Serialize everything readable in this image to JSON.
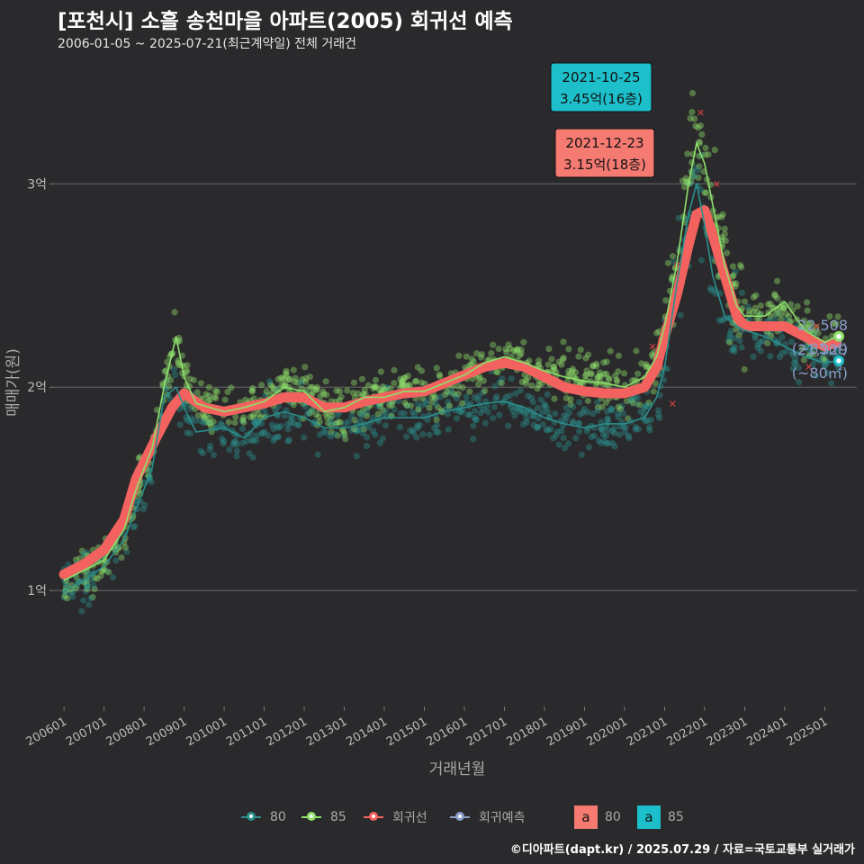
{
  "header": {
    "title": "[포천시] 소흘 송천마을 아파트(2005) 회귀선 예측",
    "subtitle": "2006-01-05 ~ 2025-07-21(최근계약일) 전체 거래건"
  },
  "caption": "©디아파트(dapt.kr) / 2025.07.29 / 자료=국토교통부 실거래가",
  "legend": {
    "items": [
      {
        "label": "80",
        "color": "#2a8f8c"
      },
      {
        "label": "85",
        "color": "#8ee06b"
      },
      {
        "label": "회귀선",
        "color": "#f4625f"
      },
      {
        "label": "회귀예측",
        "color": "#8a9ec9"
      }
    ],
    "boxes": [
      {
        "glyph": "a",
        "label": "80",
        "color": "#f47a72"
      },
      {
        "glyph": "a",
        "label": "85",
        "color": "#1dbfca"
      }
    ]
  },
  "chart_data": {
    "type": "scatter",
    "title": "[포천시] 소흘 송천마을 아파트(2005) 회귀선 예측",
    "xlabel": "거래년월",
    "ylabel": "매매가(원)",
    "xlim": [
      2005.75,
      2025.8
    ],
    "ylim": [
      0.43,
      3.55
    ],
    "y_ticks": [
      {
        "value": 1,
        "label": "1억"
      },
      {
        "value": 2,
        "label": "2억"
      },
      {
        "value": 3,
        "label": "3억"
      }
    ],
    "x_ticks": [
      {
        "value": 2006,
        "label": "200601"
      },
      {
        "value": 2007,
        "label": "200701"
      },
      {
        "value": 2008,
        "label": "200801"
      },
      {
        "value": 2009,
        "label": "200901"
      },
      {
        "value": 2010,
        "label": "201001"
      },
      {
        "value": 2011,
        "label": "201101"
      },
      {
        "value": 2012,
        "label": "201201"
      },
      {
        "value": 2013,
        "label": "201301"
      },
      {
        "value": 2014,
        "label": "201401"
      },
      {
        "value": 2015,
        "label": "201501"
      },
      {
        "value": 2016,
        "label": "201601"
      },
      {
        "value": 2017,
        "label": "201701"
      },
      {
        "value": 2018,
        "label": "201801"
      },
      {
        "value": 2019,
        "label": "201901"
      },
      {
        "value": 2020,
        "label": "202001"
      },
      {
        "value": 2021,
        "label": "202101"
      },
      {
        "value": 2022,
        "label": "202201"
      },
      {
        "value": 2023,
        "label": "202301"
      },
      {
        "value": 2024,
        "label": "202401"
      },
      {
        "value": 2025,
        "label": "202501"
      }
    ],
    "series": [
      {
        "name": "85",
        "color": "#8ee06b",
        "trend": [
          [
            2006.0,
            1.05
          ],
          [
            2006.5,
            1.1
          ],
          [
            2007.0,
            1.15
          ],
          [
            2007.5,
            1.3
          ],
          [
            2007.8,
            1.5
          ],
          [
            2008.2,
            1.7
          ],
          [
            2008.5,
            2.0
          ],
          [
            2008.8,
            2.25
          ],
          [
            2009.0,
            2.05
          ],
          [
            2009.3,
            1.92
          ],
          [
            2010.0,
            1.88
          ],
          [
            2010.5,
            1.9
          ],
          [
            2011.0,
            1.93
          ],
          [
            2011.5,
            2.0
          ],
          [
            2012.0,
            1.98
          ],
          [
            2012.5,
            1.88
          ],
          [
            2013.0,
            1.9
          ],
          [
            2013.5,
            1.95
          ],
          [
            2014.0,
            1.95
          ],
          [
            2014.5,
            1.98
          ],
          [
            2015.0,
            1.98
          ],
          [
            2015.5,
            2.02
          ],
          [
            2016.0,
            2.06
          ],
          [
            2016.5,
            2.12
          ],
          [
            2017.0,
            2.15
          ],
          [
            2017.5,
            2.12
          ],
          [
            2018.0,
            2.08
          ],
          [
            2018.5,
            2.05
          ],
          [
            2019.0,
            2.03
          ],
          [
            2019.5,
            2.02
          ],
          [
            2020.0,
            2.0
          ],
          [
            2020.5,
            2.05
          ],
          [
            2020.8,
            2.15
          ],
          [
            2021.0,
            2.3
          ],
          [
            2021.3,
            2.6
          ],
          [
            2021.6,
            3.0
          ],
          [
            2021.8,
            3.2
          ],
          [
            2022.0,
            3.1
          ],
          [
            2022.2,
            2.9
          ],
          [
            2022.5,
            2.6
          ],
          [
            2022.8,
            2.4
          ],
          [
            2023.0,
            2.35
          ],
          [
            2023.5,
            2.35
          ],
          [
            2024.0,
            2.42
          ],
          [
            2024.5,
            2.28
          ],
          [
            2025.0,
            2.22
          ],
          [
            2025.3,
            2.25
          ]
        ]
      },
      {
        "name": "80",
        "color": "#2a8f8c",
        "trend": [
          [
            2006.0,
            1.0
          ],
          [
            2006.5,
            1.05
          ],
          [
            2007.0,
            1.12
          ],
          [
            2007.5,
            1.25
          ],
          [
            2007.8,
            1.4
          ],
          [
            2008.2,
            1.6
          ],
          [
            2008.5,
            1.95
          ],
          [
            2008.8,
            2.0
          ],
          [
            2009.0,
            1.9
          ],
          [
            2009.3,
            1.78
          ],
          [
            2010.0,
            1.8
          ],
          [
            2010.5,
            1.75
          ],
          [
            2011.0,
            1.85
          ],
          [
            2011.5,
            1.88
          ],
          [
            2012.0,
            1.85
          ],
          [
            2012.5,
            1.8
          ],
          [
            2013.0,
            1.8
          ],
          [
            2013.5,
            1.82
          ],
          [
            2014.0,
            1.85
          ],
          [
            2014.5,
            1.85
          ],
          [
            2015.0,
            1.85
          ],
          [
            2015.5,
            1.88
          ],
          [
            2016.0,
            1.9
          ],
          [
            2016.5,
            1.92
          ],
          [
            2017.0,
            1.93
          ],
          [
            2017.5,
            1.9
          ],
          [
            2018.0,
            1.85
          ],
          [
            2018.5,
            1.82
          ],
          [
            2019.0,
            1.8
          ],
          [
            2019.5,
            1.82
          ],
          [
            2020.0,
            1.82
          ],
          [
            2020.5,
            1.85
          ],
          [
            2020.8,
            1.95
          ],
          [
            2021.0,
            2.1
          ],
          [
            2021.3,
            2.5
          ],
          [
            2021.6,
            2.85
          ],
          [
            2021.8,
            3.0
          ],
          [
            2022.0,
            2.8
          ],
          [
            2022.2,
            2.55
          ],
          [
            2022.5,
            2.35
          ],
          [
            2022.8,
            2.3
          ],
          [
            2023.0,
            2.28
          ],
          [
            2023.5,
            2.25
          ],
          [
            2024.0,
            2.2
          ],
          [
            2024.5,
            2.15
          ],
          [
            2025.0,
            2.12
          ],
          [
            2025.3,
            2.13
          ]
        ]
      },
      {
        "name": "회귀선",
        "color": "#f4625f",
        "trend": [
          [
            2006.0,
            1.08
          ],
          [
            2006.5,
            1.13
          ],
          [
            2007.0,
            1.2
          ],
          [
            2007.5,
            1.35
          ],
          [
            2007.8,
            1.55
          ],
          [
            2008.3,
            1.75
          ],
          [
            2008.7,
            1.9
          ],
          [
            2009.0,
            1.97
          ],
          [
            2009.5,
            1.9
          ],
          [
            2010.0,
            1.88
          ],
          [
            2010.5,
            1.9
          ],
          [
            2011.0,
            1.92
          ],
          [
            2011.5,
            1.95
          ],
          [
            2012.0,
            1.95
          ],
          [
            2012.5,
            1.9
          ],
          [
            2013.0,
            1.9
          ],
          [
            2013.5,
            1.93
          ],
          [
            2014.0,
            1.95
          ],
          [
            2014.5,
            1.97
          ],
          [
            2015.0,
            1.98
          ],
          [
            2015.5,
            2.02
          ],
          [
            2016.0,
            2.06
          ],
          [
            2016.5,
            2.1
          ],
          [
            2017.0,
            2.12
          ],
          [
            2017.5,
            2.1
          ],
          [
            2018.0,
            2.05
          ],
          [
            2018.5,
            2.0
          ],
          [
            2019.0,
            1.98
          ],
          [
            2019.5,
            1.97
          ],
          [
            2020.0,
            1.97
          ],
          [
            2020.5,
            2.0
          ],
          [
            2020.8,
            2.1
          ],
          [
            2021.0,
            2.25
          ],
          [
            2021.3,
            2.45
          ],
          [
            2021.6,
            2.7
          ],
          [
            2021.8,
            2.85
          ],
          [
            2022.0,
            2.87
          ],
          [
            2022.2,
            2.75
          ],
          [
            2022.5,
            2.55
          ],
          [
            2022.8,
            2.35
          ],
          [
            2023.0,
            2.3
          ],
          [
            2023.5,
            2.3
          ],
          [
            2024.0,
            2.3
          ],
          [
            2024.5,
            2.25
          ],
          [
            2025.0,
            2.2
          ],
          [
            2025.3,
            2.22
          ]
        ]
      }
    ],
    "point_labels": [
      {
        "area": "85",
        "x": 2025.35,
        "y": 2.25,
        "value": "22,508",
        "size": "(~85㎡)"
      },
      {
        "area": "80",
        "x": 2025.35,
        "y": 2.13,
        "value": "21,329",
        "size": "(~80㎡)"
      }
    ],
    "callouts": [
      {
        "kind": "85",
        "date": "2021-10-25",
        "price": "3.45억(16층)",
        "x": 2021.81,
        "y": 3.45,
        "color": "#1dbfca"
      },
      {
        "kind": "80",
        "date": "2021-12-23",
        "price": "3.15억(18층)",
        "x": 2021.97,
        "y": 3.15,
        "color": "#f47a72"
      }
    ]
  }
}
